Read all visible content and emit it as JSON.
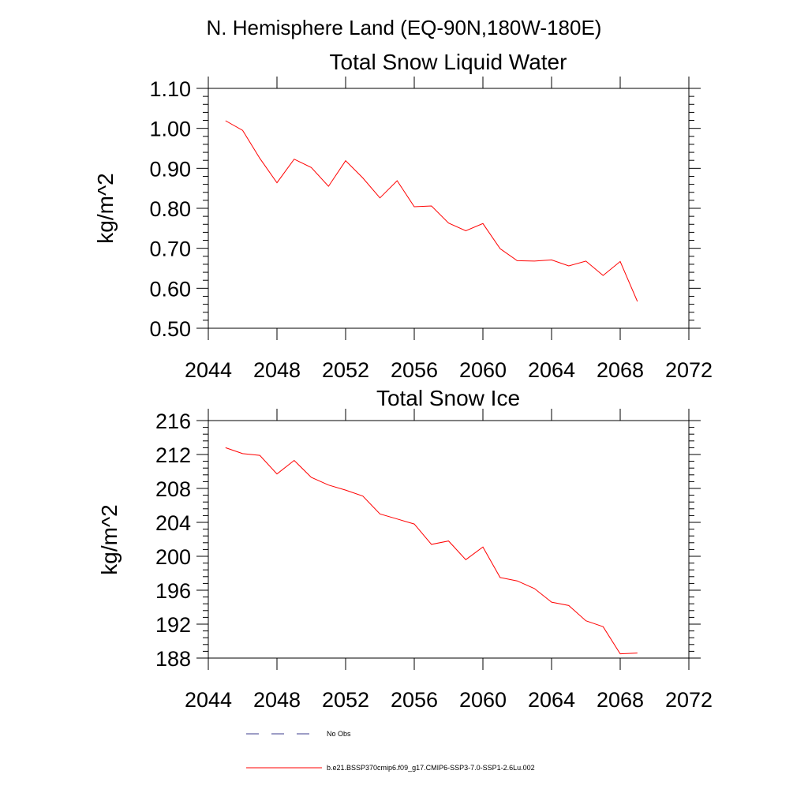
{
  "figure_title": "N. Hemisphere Land (EQ-90N,180W-180E)",
  "legend": [
    {
      "label": "No Obs",
      "color": "#3c3c8c",
      "style": "dashed"
    },
    {
      "label": "b.e21.BSSP370cmip6.f09_g17.CMIP6-SSP3-7.0-SSP1-2.6Lu.002",
      "color": "#ff0000",
      "style": "solid"
    }
  ],
  "chart_data": [
    {
      "type": "line",
      "title": "Total Snow Liquid Water",
      "xlabel": "",
      "ylabel": "kg/m^2",
      "xlim": [
        2044,
        2072
      ],
      "ylim": [
        0.5,
        1.1
      ],
      "xticks": [
        2044,
        2048,
        2052,
        2056,
        2060,
        2064,
        2068,
        2072
      ],
      "yticks": [
        0.5,
        0.6,
        0.7,
        0.8,
        0.9,
        1.0,
        1.1
      ],
      "ytick_decimals": 2,
      "x": [
        2045,
        2046,
        2047,
        2048,
        2049,
        2050,
        2051,
        2052,
        2053,
        2054,
        2055,
        2056,
        2057,
        2058,
        2059,
        2060,
        2061,
        2062,
        2063,
        2064,
        2065,
        2066,
        2067,
        2068,
        2069
      ],
      "series": [
        {
          "values": [
            1.019,
            0.995,
            0.925,
            0.864,
            0.923,
            0.902,
            0.855,
            0.919,
            0.876,
            0.826,
            0.869,
            0.804,
            0.806,
            0.763,
            0.744,
            0.762,
            0.699,
            0.669,
            0.668,
            0.671,
            0.656,
            0.668,
            0.632,
            0.667,
            0.567
          ],
          "color": "#ff0000"
        }
      ],
      "grid": false
    },
    {
      "type": "line",
      "title": "Total Snow Ice",
      "xlabel": "",
      "ylabel": "kg/m^2",
      "xlim": [
        2044,
        2072
      ],
      "ylim": [
        188,
        216
      ],
      "xticks": [
        2044,
        2048,
        2052,
        2056,
        2060,
        2064,
        2068,
        2072
      ],
      "yticks": [
        188,
        192,
        196,
        200,
        204,
        208,
        212,
        216
      ],
      "ytick_decimals": 0,
      "x": [
        2045,
        2046,
        2047,
        2048,
        2049,
        2050,
        2051,
        2052,
        2053,
        2054,
        2055,
        2056,
        2057,
        2058,
        2059,
        2060,
        2061,
        2062,
        2063,
        2064,
        2065,
        2066,
        2067,
        2068,
        2069
      ],
      "series": [
        {
          "values": [
            212.8,
            212.1,
            211.9,
            209.7,
            211.3,
            209.3,
            208.4,
            207.8,
            207.1,
            205.0,
            204.4,
            203.8,
            201.4,
            201.8,
            199.6,
            201.1,
            197.5,
            197.1,
            196.2,
            194.6,
            194.2,
            192.4,
            191.7,
            188.5,
            188.6
          ],
          "color": "#ff0000"
        }
      ],
      "grid": false
    }
  ]
}
